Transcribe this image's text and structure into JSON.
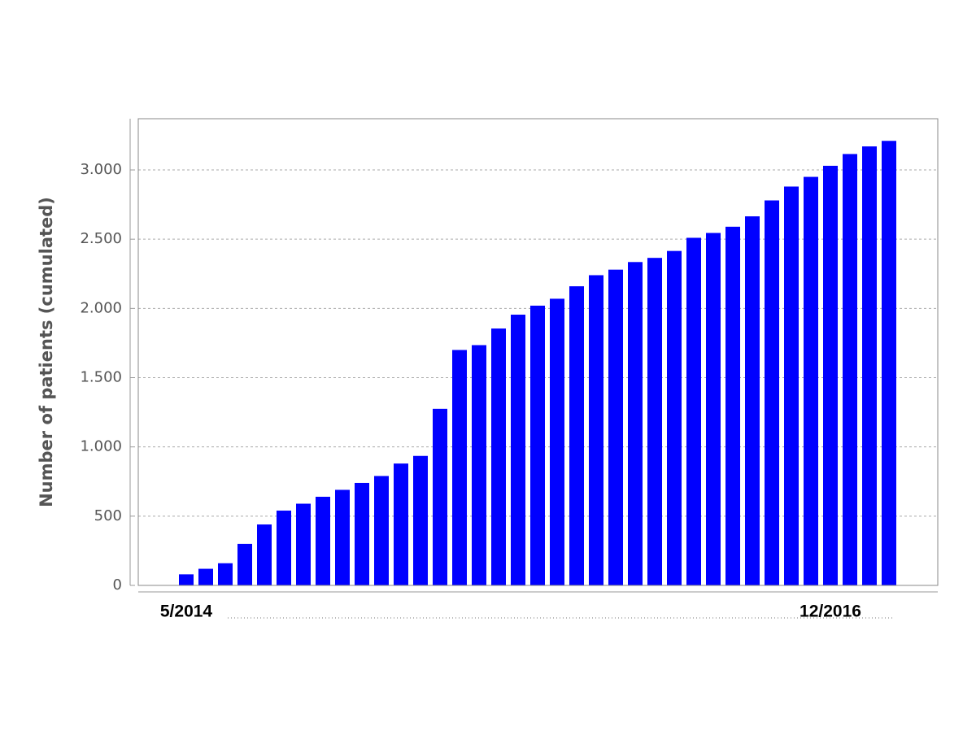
{
  "chart_data": {
    "type": "bar",
    "y_label": "Number of patients (cumulated)",
    "categories": [
      "5/2014",
      null,
      null,
      null,
      null,
      null,
      null,
      null,
      null,
      null,
      null,
      null,
      null,
      null,
      null,
      null,
      null,
      null,
      null,
      null,
      null,
      null,
      null,
      null,
      null,
      null,
      null,
      null,
      null,
      null,
      null,
      null,
      null,
      "12/2016",
      null,
      null,
      null
    ],
    "values": [
      80,
      120,
      160,
      300,
      440,
      540,
      590,
      640,
      690,
      740,
      790,
      880,
      935,
      1275,
      1700,
      1735,
      1855,
      1955,
      2020,
      2070,
      2160,
      2240,
      2280,
      2335,
      2365,
      2415,
      2510,
      2545,
      2590,
      2665,
      2780,
      2880,
      2950,
      3030,
      3115,
      3170,
      3210
    ],
    "color": "#0000ff",
    "ylim": [
      0,
      3370
    ],
    "yticks": [
      0,
      500,
      {
        "value": 1000,
        "label": "1.000"
      },
      {
        "value": 1500,
        "label": "1.500"
      },
      {
        "value": 2000,
        "label": "2.000"
      },
      {
        "value": 2500,
        "label": "2.500"
      },
      {
        "value": 3000,
        "label": "3.000"
      }
    ],
    "grid": true
  }
}
